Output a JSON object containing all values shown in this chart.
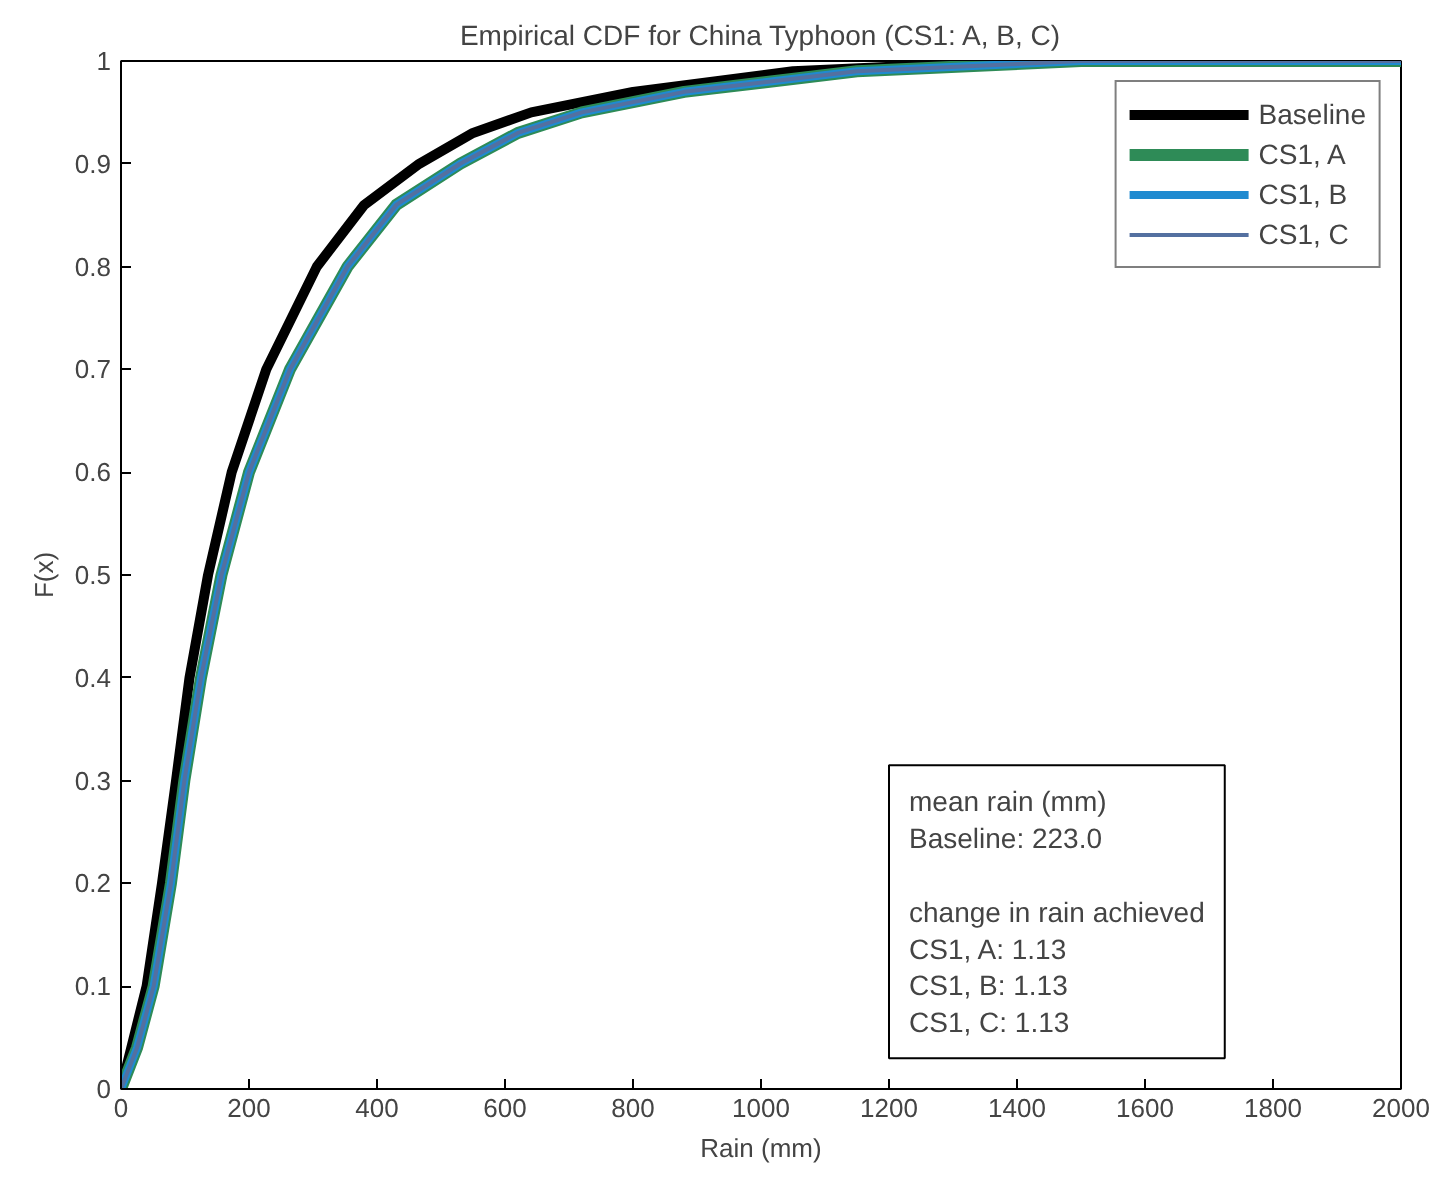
{
  "chart_data": {
    "type": "line",
    "title": "Empirical CDF for China Typhoon (CS1: A, B, C)",
    "xlabel": "Rain (mm)",
    "ylabel": "F(x)",
    "xlim": [
      0,
      2000
    ],
    "xticks": [
      0,
      200,
      400,
      600,
      800,
      1000,
      1200,
      1400,
      1600,
      1800,
      2000
    ],
    "ylim": [
      0,
      1
    ],
    "yticks": [
      0,
      0.1,
      0.2,
      0.3,
      0.4,
      0.5,
      0.6,
      0.7,
      0.8,
      0.9,
      1
    ],
    "grid": false,
    "legend": "top right",
    "marker": "none",
    "line_style": "solid",
    "series": [
      {
        "name": "Baseline",
        "color": "#000000",
        "x": [
          0,
          20,
          40,
          64,
          86,
          107,
          136,
          173,
          227,
          306,
          380,
          466,
          550,
          641,
          800,
          1050,
          1400,
          2000
        ],
        "values": [
          0,
          0.05,
          0.1,
          0.2,
          0.3,
          0.4,
          0.5,
          0.6,
          0.7,
          0.8,
          0.86,
          0.9,
          0.93,
          0.95,
          0.97,
          0.99,
          1,
          1
        ]
      },
      {
        "name": "CS1, A",
        "color": "#2e8b57",
        "x": [
          0,
          25,
          51,
          78,
          99,
          125,
          157,
          200,
          264,
          354,
          430,
          530,
          620,
          720,
          880,
          1150,
          1500,
          2000
        ],
        "values": [
          0,
          0.04,
          0.1,
          0.2,
          0.3,
          0.4,
          0.5,
          0.6,
          0.7,
          0.8,
          0.86,
          0.9,
          0.93,
          0.95,
          0.97,
          0.99,
          1,
          1
        ]
      },
      {
        "name": "CS1, B",
        "color": "#1f8ad0",
        "x": [
          0,
          25,
          51,
          78,
          99,
          125,
          157,
          200,
          264,
          354,
          430,
          530,
          620,
          720,
          880,
          1150,
          1500,
          2000
        ],
        "values": [
          0,
          0.04,
          0.1,
          0.2,
          0.3,
          0.4,
          0.5,
          0.6,
          0.7,
          0.8,
          0.86,
          0.9,
          0.93,
          0.95,
          0.97,
          0.99,
          1,
          1
        ]
      },
      {
        "name": "CS1, C",
        "color": "#5470a0",
        "x": [
          0,
          25,
          51,
          78,
          99,
          125,
          157,
          200,
          264,
          354,
          430,
          530,
          620,
          720,
          880,
          1150,
          1500,
          2000
        ],
        "values": [
          0,
          0.04,
          0.1,
          0.2,
          0.3,
          0.4,
          0.5,
          0.6,
          0.7,
          0.8,
          0.86,
          0.9,
          0.93,
          0.95,
          0.97,
          0.99,
          1,
          1
        ]
      }
    ],
    "annotations": [
      "mean rain (mm)\nBaseline:  223.0\n\nchange in rain achieved\nCS1, A: 1.13\nCS1, B: 1.13\nCS1, C: 1.13"
    ]
  }
}
